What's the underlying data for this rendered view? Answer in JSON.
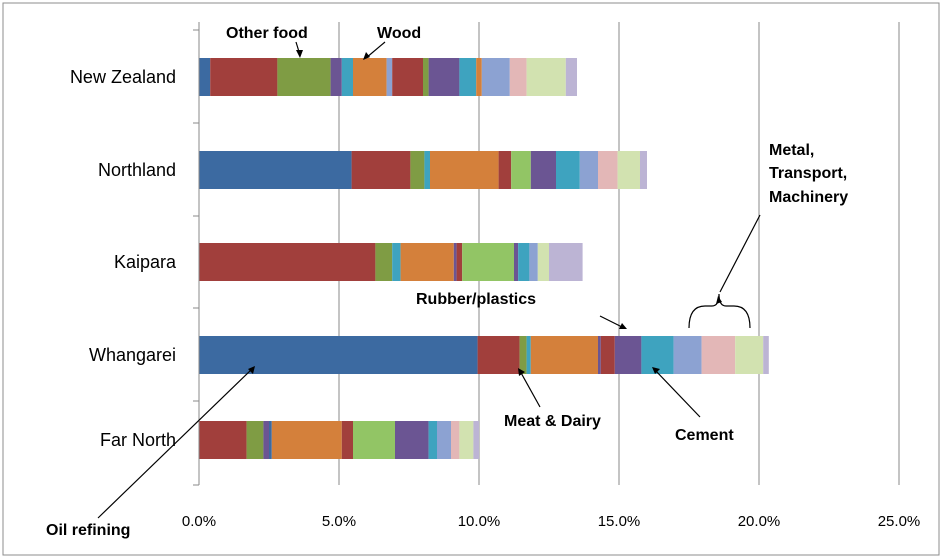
{
  "chart_data": {
    "type": "bar",
    "orientation": "horizontal",
    "stacked": true,
    "title": "",
    "xlabel": "",
    "ylabel": "",
    "xlim": [
      0,
      25
    ],
    "x_ticks": [
      "0.0%",
      "5.0%",
      "10.0%",
      "15.0%",
      "20.0%",
      "25.0%"
    ],
    "grid": true,
    "legend": "none",
    "categories": [
      "New Zealand",
      "Northland",
      "Kaipara",
      "Whangarei",
      "Far North"
    ],
    "segment_colors": [
      "#3c6aa1",
      "#a13f3c",
      "#7f9c44",
      "#6b5593",
      "#3ea3bf",
      "#d4803b",
      "#8ca2d2",
      "#d46a6a",
      "#c9b0d2",
      "#d2e2b0",
      "#e3b7b7",
      "#bcb4d4",
      "#92c565",
      "#41a9c6"
    ],
    "series": [
      {
        "segments": [
          [
            0.4,
            0
          ],
          [
            2.4,
            1
          ],
          [
            1.9,
            2
          ],
          [
            0.4,
            3
          ],
          [
            0.4,
            4
          ],
          [
            1.2,
            5
          ],
          [
            0.2,
            6
          ],
          [
            1.1,
            1
          ],
          [
            0.2,
            2
          ],
          [
            1.1,
            3
          ],
          [
            0.6,
            4
          ],
          [
            0.2,
            5
          ],
          [
            1.0,
            6
          ],
          [
            0.6,
            10
          ],
          [
            1.4,
            9
          ],
          [
            0.4,
            11
          ]
        ]
      },
      {
        "segments": [
          [
            5.45,
            0
          ],
          [
            2.1,
            1
          ],
          [
            0.5,
            2
          ],
          [
            0.2,
            4
          ],
          [
            2.45,
            5
          ],
          [
            0.45,
            1
          ],
          [
            0.7,
            12
          ],
          [
            0.9,
            3
          ],
          [
            0.85,
            4
          ],
          [
            0.65,
            6
          ],
          [
            0.7,
            10
          ],
          [
            0.8,
            9
          ],
          [
            0.25,
            11
          ]
        ]
      },
      {
        "segments": [
          [
            6.3,
            1
          ],
          [
            0.6,
            2
          ],
          [
            0.3,
            4
          ],
          [
            1.9,
            5
          ],
          [
            0.1,
            3
          ],
          [
            0.2,
            1
          ],
          [
            1.85,
            12
          ],
          [
            0.15,
            3
          ],
          [
            0.4,
            4
          ],
          [
            0.3,
            6
          ],
          [
            0.4,
            9
          ],
          [
            1.2,
            11
          ]
        ]
      },
      {
        "segments": [
          [
            9.95,
            0
          ],
          [
            1.5,
            1
          ],
          [
            0.25,
            2
          ],
          [
            0.15,
            4
          ],
          [
            2.4,
            5
          ],
          [
            0.1,
            3
          ],
          [
            0.5,
            1
          ],
          [
            0.95,
            3
          ],
          [
            1.15,
            4
          ],
          [
            1.0,
            6
          ],
          [
            1.2,
            10
          ],
          [
            1.0,
            9
          ],
          [
            0.2,
            11
          ]
        ]
      },
      {
        "segments": [
          [
            1.7,
            1
          ],
          [
            0.6,
            2
          ],
          [
            0.2,
            3
          ],
          [
            0.1,
            0
          ],
          [
            2.5,
            5
          ],
          [
            0.4,
            1
          ],
          [
            1.5,
            12
          ],
          [
            1.2,
            3
          ],
          [
            0.3,
            4
          ],
          [
            0.5,
            6
          ],
          [
            0.3,
            10
          ],
          [
            0.5,
            9
          ],
          [
            0.2,
            11
          ]
        ]
      }
    ],
    "annotations": [
      "Other food",
      "Wood",
      "Metal,",
      "Transport,",
      "Machinery",
      "Rubber/plastics",
      "Meat & Dairy",
      "Cement",
      "Oil refining"
    ]
  }
}
